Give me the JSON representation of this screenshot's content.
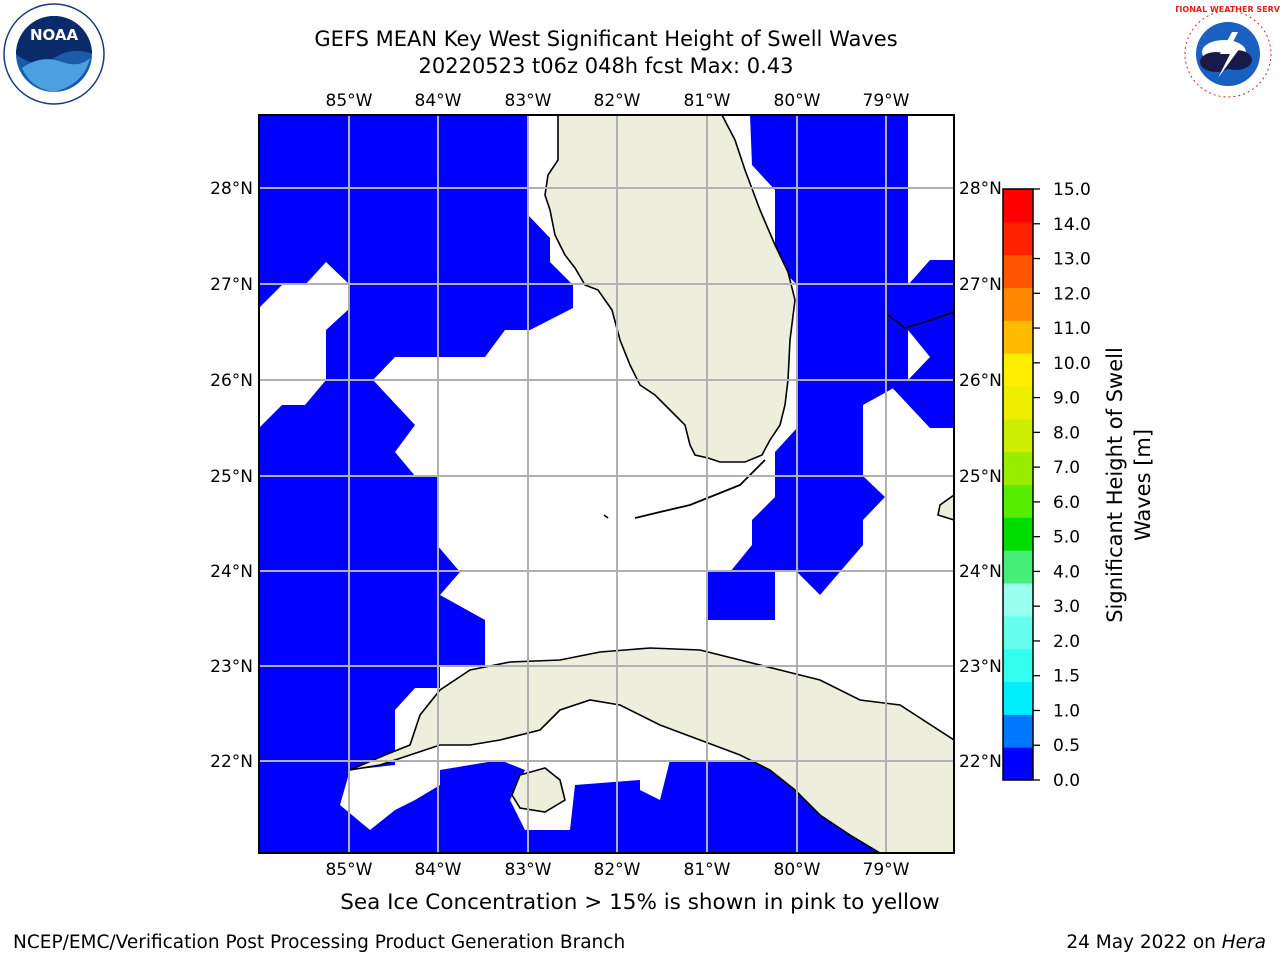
{
  "header": {
    "title_line1": "GEFS MEAN Key West Significant Height of Swell Waves",
    "title_line2": "20220523 t06z 048h fcst   Max: 0.43"
  },
  "logos": {
    "left": {
      "icon": "noaa-logo-icon",
      "text": "NOAA"
    },
    "right": {
      "icon": "nws-logo-icon",
      "text": "NATIONAL WEATHER SERVICE"
    }
  },
  "map": {
    "lon_labels": [
      "85°W",
      "84°W",
      "83°W",
      "82°W",
      "81°W",
      "80°W",
      "79°W"
    ],
    "lat_labels": [
      "28°N",
      "27°N",
      "26°N",
      "25°N",
      "24°N",
      "23°N",
      "22°N"
    ],
    "colors": {
      "ocean_low": "#0000ff",
      "land": "#eeeedd",
      "grid": "#b0b0b0",
      "coast": "#000000"
    }
  },
  "colorbar": {
    "title_line1": "Significant Height of Swell",
    "title_line2": "Waves [m]",
    "ticks": [
      "0.0",
      "0.5",
      "1.0",
      "1.5",
      "2.0",
      "3.0",
      "4.0",
      "5.0",
      "6.0",
      "7.0",
      "8.0",
      "9.0",
      "10.0",
      "11.0",
      "12.0",
      "13.0",
      "14.0",
      "15.0"
    ],
    "colors": [
      "#0000ff",
      "#0077ff",
      "#00eeff",
      "#33ffee",
      "#66ffee",
      "#99ffee",
      "#44ee77",
      "#00dd00",
      "#55ee00",
      "#99ee00",
      "#ccee00",
      "#eeee00",
      "#ffee00",
      "#ffbb00",
      "#ff8800",
      "#ff5500",
      "#ff2200",
      "#ff0000"
    ]
  },
  "footer": {
    "caption": "Sea Ice Concentration > 15% is shown in pink to yellow",
    "left": "NCEP/EMC/Verification Post Processing Product Generation Branch",
    "right_date": "24 May 2022 on ",
    "right_host": "Hera"
  }
}
